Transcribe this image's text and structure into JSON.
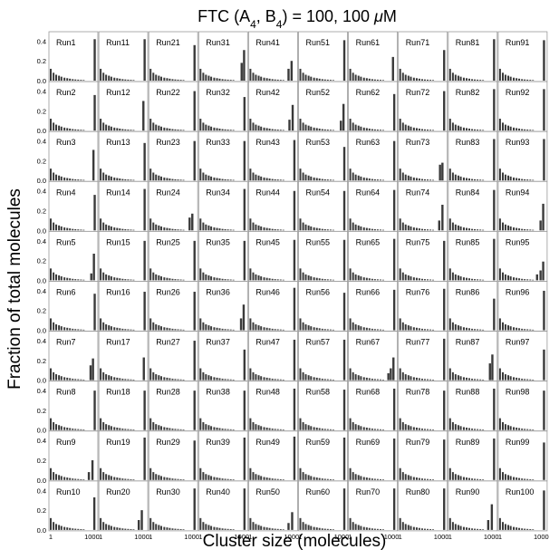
{
  "chart_data": {
    "type": "bar",
    "layout": "small-multiples",
    "title": "FTC (A₄, B₄) = 100, 100 μM",
    "title_parts": {
      "prefix": "FTC (A",
      "sub1": "4",
      "mid": ", B",
      "sub2": "4",
      "suffix": ") = 100, 100 ",
      "unit_mu": "μ",
      "unit": "M"
    },
    "xlabel": "Cluster size (molecules)",
    "ylabel": "Fraction of total molecules",
    "x_scale": "log",
    "xlim": [
      1,
      2000
    ],
    "x_ticks": [
      1,
      1000
    ],
    "x_tick_labels": [
      "1",
      "1000"
    ],
    "ylim": [
      0,
      0.45
    ],
    "y_ticks": [
      0.0,
      0.2,
      0.4
    ],
    "y_tick_labels": [
      "0.0",
      "0.2",
      "0.4"
    ],
    "grid": false,
    "bar_color": "#3a3a3a",
    "panels": [
      {
        "label": "Run1",
        "big": [
          [
            1600,
            0.42
          ]
        ]
      },
      {
        "label": "Run2",
        "big": [
          [
            1600,
            0.36
          ]
        ]
      },
      {
        "label": "Run3",
        "big": [
          [
            1300,
            0.31
          ]
        ]
      },
      {
        "label": "Run4",
        "big": [
          [
            1600,
            0.36
          ]
        ]
      },
      {
        "label": "Run5",
        "big": [
          [
            900,
            0.07
          ],
          [
            1400,
            0.27
          ]
        ]
      },
      {
        "label": "Run6",
        "big": [
          [
            1600,
            0.37
          ]
        ]
      },
      {
        "label": "Run7",
        "big": [
          [
            800,
            0.15
          ],
          [
            1200,
            0.22
          ]
        ]
      },
      {
        "label": "Run8",
        "big": [
          [
            1600,
            0.4
          ]
        ]
      },
      {
        "label": "Run9",
        "big": [
          [
            600,
            0.08
          ],
          [
            1100,
            0.2
          ]
        ]
      },
      {
        "label": "Run10",
        "big": [
          [
            1500,
            0.33
          ]
        ]
      },
      {
        "label": "Run11",
        "big": [
          [
            1600,
            0.42
          ]
        ]
      },
      {
        "label": "Run12",
        "big": [
          [
            1300,
            0.3
          ]
        ]
      },
      {
        "label": "Run13",
        "big": [
          [
            1600,
            0.38
          ]
        ]
      },
      {
        "label": "Run14",
        "big": [
          [
            1600,
            0.42
          ]
        ]
      },
      {
        "label": "Run15",
        "big": [
          [
            1600,
            0.4
          ]
        ]
      },
      {
        "label": "Run16",
        "big": [
          [
            1600,
            0.39
          ]
        ]
      },
      {
        "label": "Run17",
        "big": [
          [
            1400,
            0.23
          ]
        ]
      },
      {
        "label": "Run18",
        "big": [
          [
            1600,
            0.4
          ]
        ]
      },
      {
        "label": "Run19",
        "big": [
          [
            1600,
            0.43
          ]
        ]
      },
      {
        "label": "Run20",
        "big": [
          [
            600,
            0.1
          ],
          [
            1000,
            0.2
          ]
        ]
      },
      {
        "label": "Run21",
        "big": [
          [
            1600,
            0.36
          ]
        ]
      },
      {
        "label": "Run22",
        "big": [
          [
            1600,
            0.4
          ]
        ]
      },
      {
        "label": "Run23",
        "big": [
          [
            1600,
            0.4
          ]
        ]
      },
      {
        "label": "Run24",
        "big": [
          [
            700,
            0.13
          ],
          [
            1100,
            0.17
          ]
        ]
      },
      {
        "label": "Run25",
        "big": [
          [
            1600,
            0.4
          ]
        ]
      },
      {
        "label": "Run26",
        "big": [
          [
            1600,
            0.39
          ]
        ]
      },
      {
        "label": "Run27",
        "big": [
          [
            1600,
            0.4
          ]
        ]
      },
      {
        "label": "Run28",
        "big": [
          [
            1600,
            0.4
          ]
        ]
      },
      {
        "label": "Run29",
        "big": [
          [
            1600,
            0.4
          ]
        ]
      },
      {
        "label": "Run30",
        "big": [
          [
            1600,
            0.42
          ]
        ]
      },
      {
        "label": "Run31",
        "big": [
          [
            1000,
            0.18
          ],
          [
            1500,
            0.31
          ]
        ]
      },
      {
        "label": "Run32",
        "big": [
          [
            1600,
            0.34
          ]
        ]
      },
      {
        "label": "Run33",
        "big": [
          [
            1600,
            0.4
          ]
        ]
      },
      {
        "label": "Run34",
        "big": [
          [
            1600,
            0.42
          ]
        ]
      },
      {
        "label": "Run35",
        "big": [
          [
            1600,
            0.4
          ]
        ]
      },
      {
        "label": "Run36",
        "big": [
          [
            900,
            0.12
          ],
          [
            1400,
            0.26
          ]
        ]
      },
      {
        "label": "Run37",
        "big": [
          [
            1600,
            0.31
          ]
        ]
      },
      {
        "label": "Run38",
        "big": [
          [
            1600,
            0.4
          ]
        ]
      },
      {
        "label": "Run39",
        "big": [
          [
            1600,
            0.43
          ]
        ]
      },
      {
        "label": "Run40",
        "big": [
          [
            1600,
            0.42
          ]
        ]
      },
      {
        "label": "Run41",
        "big": [
          [
            600,
            0.12
          ],
          [
            1000,
            0.2
          ]
        ]
      },
      {
        "label": "Run42",
        "big": [
          [
            700,
            0.11
          ],
          [
            1200,
            0.26
          ]
        ]
      },
      {
        "label": "Run43",
        "big": [
          [
            1600,
            0.41
          ]
        ]
      },
      {
        "label": "Run44",
        "big": [
          [
            1600,
            0.4
          ]
        ]
      },
      {
        "label": "Run45",
        "big": [
          [
            1600,
            0.41
          ]
        ]
      },
      {
        "label": "Run46",
        "big": [
          [
            1600,
            0.43
          ]
        ]
      },
      {
        "label": "Run47",
        "big": [
          [
            1600,
            0.41
          ]
        ]
      },
      {
        "label": "Run48",
        "big": [
          [
            1600,
            0.42
          ]
        ]
      },
      {
        "label": "Run49",
        "big": [
          [
            1600,
            0.44
          ]
        ]
      },
      {
        "label": "Run50",
        "big": [
          [
            600,
            0.07
          ],
          [
            1100,
            0.18
          ]
        ]
      },
      {
        "label": "Run51",
        "big": [
          [
            1600,
            0.41
          ]
        ]
      },
      {
        "label": "Run52",
        "big": [
          [
            900,
            0.1
          ],
          [
            1400,
            0.27
          ]
        ]
      },
      {
        "label": "Run53",
        "big": [
          [
            1600,
            0.34
          ]
        ]
      },
      {
        "label": "Run54",
        "big": [
          [
            1600,
            0.4
          ]
        ]
      },
      {
        "label": "Run55",
        "big": [
          [
            1600,
            0.41
          ]
        ]
      },
      {
        "label": "Run56",
        "big": [
          [
            1600,
            0.38
          ]
        ]
      },
      {
        "label": "Run57",
        "big": [
          [
            1600,
            0.41
          ]
        ]
      },
      {
        "label": "Run58",
        "big": [
          [
            1600,
            0.41
          ]
        ]
      },
      {
        "label": "Run59",
        "big": [
          [
            1600,
            0.43
          ]
        ]
      },
      {
        "label": "Run60",
        "big": [
          [
            1600,
            0.42
          ]
        ]
      },
      {
        "label": "Run61",
        "big": [
          [
            1300,
            0.24
          ]
        ]
      },
      {
        "label": "Run62",
        "big": [
          [
            1600,
            0.37
          ]
        ]
      },
      {
        "label": "Run63",
        "big": [
          [
            1600,
            0.4
          ]
        ]
      },
      {
        "label": "Run64",
        "big": [
          [
            1600,
            0.41
          ]
        ]
      },
      {
        "label": "Run65",
        "big": [
          [
            1600,
            0.42
          ]
        ]
      },
      {
        "label": "Run66",
        "big": [
          [
            1600,
            0.41
          ]
        ]
      },
      {
        "label": "Run67",
        "big": [
          [
            600,
            0.07
          ],
          [
            900,
            0.12
          ],
          [
            1400,
            0.23
          ]
        ]
      },
      {
        "label": "Run68",
        "big": [
          [
            1600,
            0.42
          ]
        ]
      },
      {
        "label": "Run69",
        "big": [
          [
            1600,
            0.42
          ]
        ]
      },
      {
        "label": "Run70",
        "big": [
          [
            1600,
            0.42
          ]
        ]
      },
      {
        "label": "Run71",
        "big": [
          [
            1600,
            0.31
          ]
        ]
      },
      {
        "label": "Run72",
        "big": [
          [
            1600,
            0.4
          ]
        ]
      },
      {
        "label": "Run73",
        "big": [
          [
            800,
            0.16
          ],
          [
            1200,
            0.18
          ]
        ]
      },
      {
        "label": "Run74",
        "big": [
          [
            700,
            0.1
          ],
          [
            1200,
            0.26
          ]
        ]
      },
      {
        "label": "Run75",
        "big": [
          [
            1600,
            0.4
          ]
        ]
      },
      {
        "label": "Run76",
        "big": [
          [
            1600,
            0.42
          ]
        ]
      },
      {
        "label": "Run77",
        "big": [
          [
            1600,
            0.42
          ]
        ]
      },
      {
        "label": "Run78",
        "big": [
          [
            1600,
            0.4
          ]
        ]
      },
      {
        "label": "Run79",
        "big": [
          [
            1600,
            0.41
          ]
        ]
      },
      {
        "label": "Run80",
        "big": [
          [
            1600,
            0.42
          ]
        ]
      },
      {
        "label": "Run81",
        "big": [
          [
            1600,
            0.42
          ]
        ]
      },
      {
        "label": "Run82",
        "big": [
          [
            1600,
            0.42
          ]
        ]
      },
      {
        "label": "Run83",
        "big": [
          [
            1600,
            0.42
          ]
        ]
      },
      {
        "label": "Run84",
        "big": [
          [
            1600,
            0.41
          ]
        ]
      },
      {
        "label": "Run85",
        "big": [
          [
            1600,
            0.42
          ]
        ]
      },
      {
        "label": "Run86",
        "big": [
          [
            1600,
            0.32
          ]
        ]
      },
      {
        "label": "Run87",
        "big": [
          [
            800,
            0.17
          ],
          [
            1200,
            0.26
          ]
        ]
      },
      {
        "label": "Run88",
        "big": [
          [
            1600,
            0.42
          ]
        ]
      },
      {
        "label": "Run89",
        "big": [
          [
            1600,
            0.42
          ]
        ]
      },
      {
        "label": "Run90",
        "big": [
          [
            600,
            0.1
          ],
          [
            1100,
            0.26
          ]
        ]
      },
      {
        "label": "Run91",
        "big": [
          [
            1600,
            0.41
          ]
        ]
      },
      {
        "label": "Run92",
        "big": [
          [
            1600,
            0.42
          ]
        ]
      },
      {
        "label": "Run93",
        "big": [
          [
            1600,
            0.42
          ]
        ]
      },
      {
        "label": "Run94",
        "big": [
          [
            900,
            0.1
          ],
          [
            1400,
            0.27
          ]
        ]
      },
      {
        "label": "Run95",
        "big": [
          [
            500,
            0.06
          ],
          [
            900,
            0.1
          ],
          [
            1400,
            0.19
          ]
        ]
      },
      {
        "label": "Run96",
        "big": [
          [
            1600,
            0.4
          ]
        ]
      },
      {
        "label": "Run97",
        "big": [
          [
            1600,
            0.31
          ]
        ]
      },
      {
        "label": "Run98",
        "big": [
          [
            1600,
            0.4
          ]
        ]
      },
      {
        "label": "Run99",
        "big": [
          [
            1600,
            0.38
          ]
        ]
      },
      {
        "label": "Run100",
        "big": [
          [
            1600,
            0.4
          ]
        ]
      }
    ],
    "small_cluster_profile": [
      [
        1,
        0.12
      ],
      [
        1.6,
        0.08
      ],
      [
        2.5,
        0.06
      ],
      [
        4,
        0.05
      ],
      [
        6,
        0.04
      ],
      [
        10,
        0.03
      ],
      [
        16,
        0.025
      ],
      [
        25,
        0.02
      ],
      [
        40,
        0.015
      ],
      [
        63,
        0.012
      ],
      [
        100,
        0.01
      ],
      [
        160,
        0.008
      ],
      [
        250,
        0.006
      ]
    ]
  }
}
